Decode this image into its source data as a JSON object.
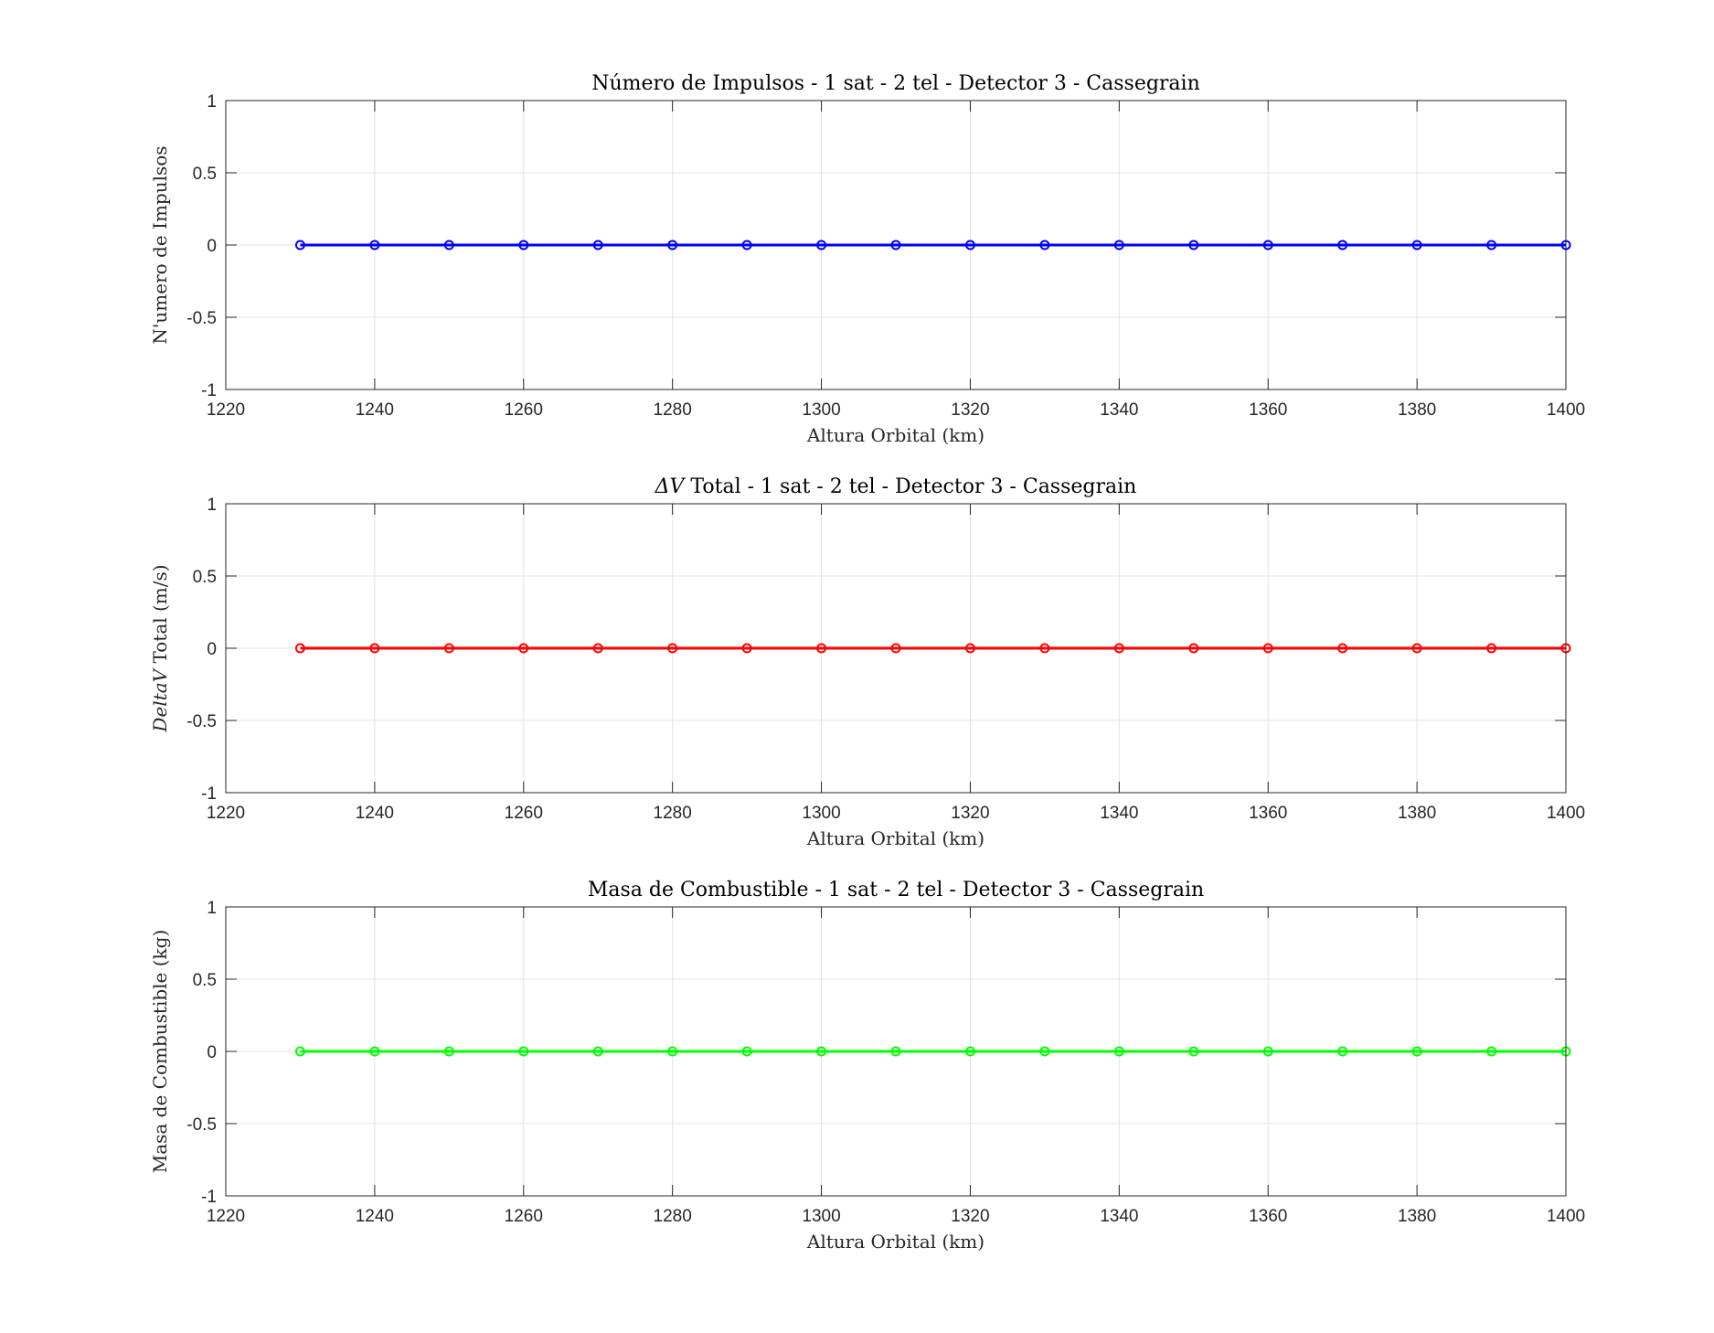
{
  "chart_data": [
    {
      "type": "line",
      "title": "Número de Impulsos - 1 sat - 2 tel - Detector 3 - Cassegrain",
      "xlabel": "Altura Orbital (km)",
      "ylabel": "N'umero de Impulsos",
      "xlim": [
        1220,
        1400
      ],
      "ylim": [
        -1,
        1
      ],
      "xticks": [
        1220,
        1240,
        1260,
        1280,
        1300,
        1320,
        1340,
        1360,
        1380,
        1400
      ],
      "yticks": [
        -1,
        -0.5,
        0,
        0.5,
        1
      ],
      "grid": true,
      "color": "#0000ff",
      "marker": "circle",
      "x": [
        1230,
        1240,
        1250,
        1260,
        1270,
        1280,
        1290,
        1300,
        1310,
        1320,
        1330,
        1340,
        1350,
        1360,
        1370,
        1380,
        1390,
        1400
      ],
      "y": [
        0,
        0,
        0,
        0,
        0,
        0,
        0,
        0,
        0,
        0,
        0,
        0,
        0,
        0,
        0,
        0,
        0,
        0
      ]
    },
    {
      "type": "line",
      "title_math": "ΔV",
      "title": "Total - 1 sat - 2 tel - Detector 3 - Cassegrain",
      "xlabel": "Altura Orbital (km)",
      "ylabel_math": "DeltaV",
      "ylabel": "Total (m/s)",
      "xlim": [
        1220,
        1400
      ],
      "ylim": [
        -1,
        1
      ],
      "xticks": [
        1220,
        1240,
        1260,
        1280,
        1300,
        1320,
        1340,
        1360,
        1380,
        1400
      ],
      "yticks": [
        -1,
        -0.5,
        0,
        0.5,
        1
      ],
      "grid": true,
      "color": "#ff0000",
      "marker": "circle",
      "x": [
        1230,
        1240,
        1250,
        1260,
        1270,
        1280,
        1290,
        1300,
        1310,
        1320,
        1330,
        1340,
        1350,
        1360,
        1370,
        1380,
        1390,
        1400
      ],
      "y": [
        0,
        0,
        0,
        0,
        0,
        0,
        0,
        0,
        0,
        0,
        0,
        0,
        0,
        0,
        0,
        0,
        0,
        0
      ]
    },
    {
      "type": "line",
      "title": "Masa de Combustible - 1 sat - 2 tel - Detector 3 - Cassegrain",
      "xlabel": "Altura Orbital (km)",
      "ylabel": "Masa de Combustible (kg)",
      "xlim": [
        1220,
        1400
      ],
      "ylim": [
        -1,
        1
      ],
      "xticks": [
        1220,
        1240,
        1260,
        1280,
        1300,
        1320,
        1340,
        1360,
        1380,
        1400
      ],
      "yticks": [
        -1,
        -0.5,
        0,
        0.5,
        1
      ],
      "grid": true,
      "color": "#00ff00",
      "marker": "circle",
      "x": [
        1230,
        1240,
        1250,
        1260,
        1270,
        1280,
        1290,
        1300,
        1310,
        1320,
        1330,
        1340,
        1350,
        1360,
        1370,
        1380,
        1390,
        1400
      ],
      "y": [
        0,
        0,
        0,
        0,
        0,
        0,
        0,
        0,
        0,
        0,
        0,
        0,
        0,
        0,
        0,
        0,
        0,
        0
      ]
    }
  ]
}
